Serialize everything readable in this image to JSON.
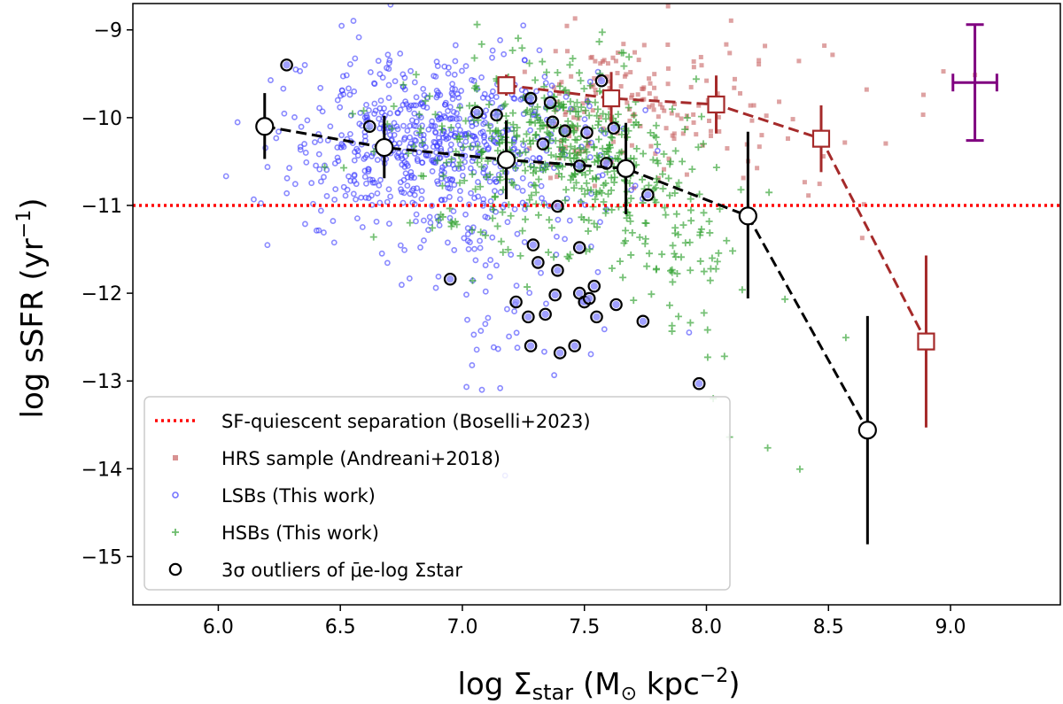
{
  "chart_data": {
    "type": "scatter",
    "title": "",
    "xlabel": "log Σstar (M⊙ kpc−2)",
    "ylabel": "log sSFR (yr−1)",
    "xlim": [
      5.65,
      9.45
    ],
    "ylim": [
      -15.55,
      -8.7
    ],
    "xticks": [
      6.0,
      6.5,
      7.0,
      7.5,
      8.0,
      8.5,
      9.0
    ],
    "xtick_labels": [
      "6.0",
      "6.5",
      "7.0",
      "7.5",
      "8.0",
      "8.5",
      "9.0"
    ],
    "yticks": [
      -9,
      -10,
      -11,
      -12,
      -13,
      -14,
      -15
    ],
    "ytick_labels": [
      "−9",
      "−10",
      "−11",
      "−12",
      "−13",
      "−14",
      "−15"
    ],
    "hline": {
      "y": -11,
      "color": "#ff0000",
      "label": "SF-quiescent separation (Boselli+2023)"
    },
    "legend": {
      "position": "lower-left",
      "entries": [
        {
          "label": "SF-quiescent separation (Boselli+2023)",
          "marker": "dotted-line",
          "color": "#ff0000"
        },
        {
          "label": "HRS sample (Andreani+2018)",
          "marker": "square",
          "color": "#c86464"
        },
        {
          "label": "LSBs (This work)",
          "marker": "circle",
          "color": "#3a3aff"
        },
        {
          "label": "HSBs (This work)",
          "marker": "plus",
          "color": "#2ca02c"
        },
        {
          "label": "3σ outliers of μ̄e-log Σstar",
          "marker": "open-circle",
          "color": "#000000"
        }
      ]
    },
    "binned_lsb": {
      "name": "LSB binned medians",
      "color": "#000000",
      "points": [
        {
          "x": 6.19,
          "y": -10.1,
          "err_lo": 0.37,
          "err_hi": 0.38
        },
        {
          "x": 6.68,
          "y": -10.34,
          "err_lo": 0.35,
          "err_hi": 0.36
        },
        {
          "x": 7.18,
          "y": -10.48,
          "err_lo": 0.45,
          "err_hi": 0.45
        },
        {
          "x": 7.67,
          "y": -10.58,
          "err_lo": 0.52,
          "err_hi": 0.52
        },
        {
          "x": 8.17,
          "y": -11.12,
          "err_lo": 0.94,
          "err_hi": 0.96
        },
        {
          "x": 8.66,
          "y": -13.56,
          "err_lo": 1.3,
          "err_hi": 1.3
        }
      ]
    },
    "binned_hrs": {
      "name": "HRS binned medians",
      "color": "#a52a2a",
      "points": [
        {
          "x": 7.18,
          "y": -9.63,
          "err_lo": 0.12,
          "err_hi": 0.12
        },
        {
          "x": 7.61,
          "y": -9.78,
          "err_lo": 0.3,
          "err_hi": 0.3
        },
        {
          "x": 8.04,
          "y": -9.85,
          "err_lo": 0.33,
          "err_hi": 0.33
        },
        {
          "x": 8.47,
          "y": -10.24,
          "err_lo": 0.38,
          "err_hi": 0.38
        },
        {
          "x": 8.9,
          "y": -12.55,
          "err_lo": 0.98,
          "err_hi": 0.98
        }
      ]
    },
    "typical_error": {
      "x": 9.1,
      "y": -9.6,
      "xerr": 0.09,
      "yerr_lo": 0.66,
      "yerr_hi": 0.66,
      "color": "#800080"
    },
    "outliers": [
      {
        "x": 6.28,
        "y": -9.4
      },
      {
        "x": 6.62,
        "y": -10.1
      },
      {
        "x": 6.95,
        "y": -11.84
      },
      {
        "x": 7.06,
        "y": -9.94
      },
      {
        "x": 7.14,
        "y": -9.97
      },
      {
        "x": 7.22,
        "y": -12.1
      },
      {
        "x": 7.27,
        "y": -12.27
      },
      {
        "x": 7.28,
        "y": -9.78
      },
      {
        "x": 7.28,
        "y": -12.6
      },
      {
        "x": 7.29,
        "y": -11.45
      },
      {
        "x": 7.31,
        "y": -11.65
      },
      {
        "x": 7.33,
        "y": -10.3
      },
      {
        "x": 7.34,
        "y": -12.24
      },
      {
        "x": 7.36,
        "y": -9.83
      },
      {
        "x": 7.37,
        "y": -10.05
      },
      {
        "x": 7.38,
        "y": -12.02
      },
      {
        "x": 7.39,
        "y": -11.74
      },
      {
        "x": 7.39,
        "y": -11.01
      },
      {
        "x": 7.4,
        "y": -12.68
      },
      {
        "x": 7.42,
        "y": -10.15
      },
      {
        "x": 7.46,
        "y": -12.6
      },
      {
        "x": 7.48,
        "y": -10.55
      },
      {
        "x": 7.48,
        "y": -11.48
      },
      {
        "x": 7.48,
        "y": -12.0
      },
      {
        "x": 7.5,
        "y": -12.1
      },
      {
        "x": 7.51,
        "y": -10.17
      },
      {
        "x": 7.52,
        "y": -12.06
      },
      {
        "x": 7.54,
        "y": -11.92
      },
      {
        "x": 7.55,
        "y": -12.27
      },
      {
        "x": 7.57,
        "y": -9.58
      },
      {
        "x": 7.59,
        "y": -10.52
      },
      {
        "x": 7.62,
        "y": -10.12
      },
      {
        "x": 7.63,
        "y": -12.13
      },
      {
        "x": 7.74,
        "y": -12.32
      },
      {
        "x": 7.76,
        "y": -10.88
      },
      {
        "x": 7.97,
        "y": -13.03
      }
    ],
    "scatter_clouds": {
      "note": "dense background samples drawn as randomly scattered markers within the visible extents",
      "lsb_count": 720,
      "hsb_count": 560,
      "hrs_count": 200
    }
  }
}
